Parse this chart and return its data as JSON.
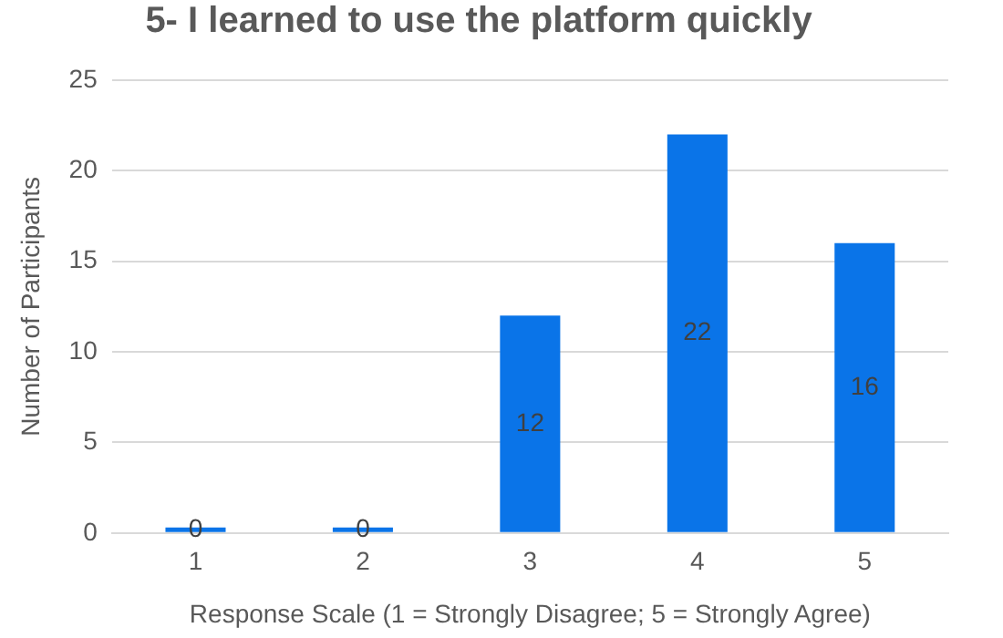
{
  "chart_data": {
    "type": "bar",
    "title": "5- I learned to use the platform quickly",
    "xlabel": "Response Scale (1 = Strongly Disagree; 5 = Strongly Agree)",
    "ylabel": "Number of Participants",
    "categories": [
      "1",
      "2",
      "3",
      "4",
      "5"
    ],
    "values": [
      0,
      0,
      12,
      22,
      16
    ],
    "color": "#0a74e8",
    "ylim": [
      0,
      25
    ],
    "yticks": [
      0,
      5,
      10,
      15,
      20,
      25
    ],
    "grid": "y",
    "data_labels": true
  }
}
